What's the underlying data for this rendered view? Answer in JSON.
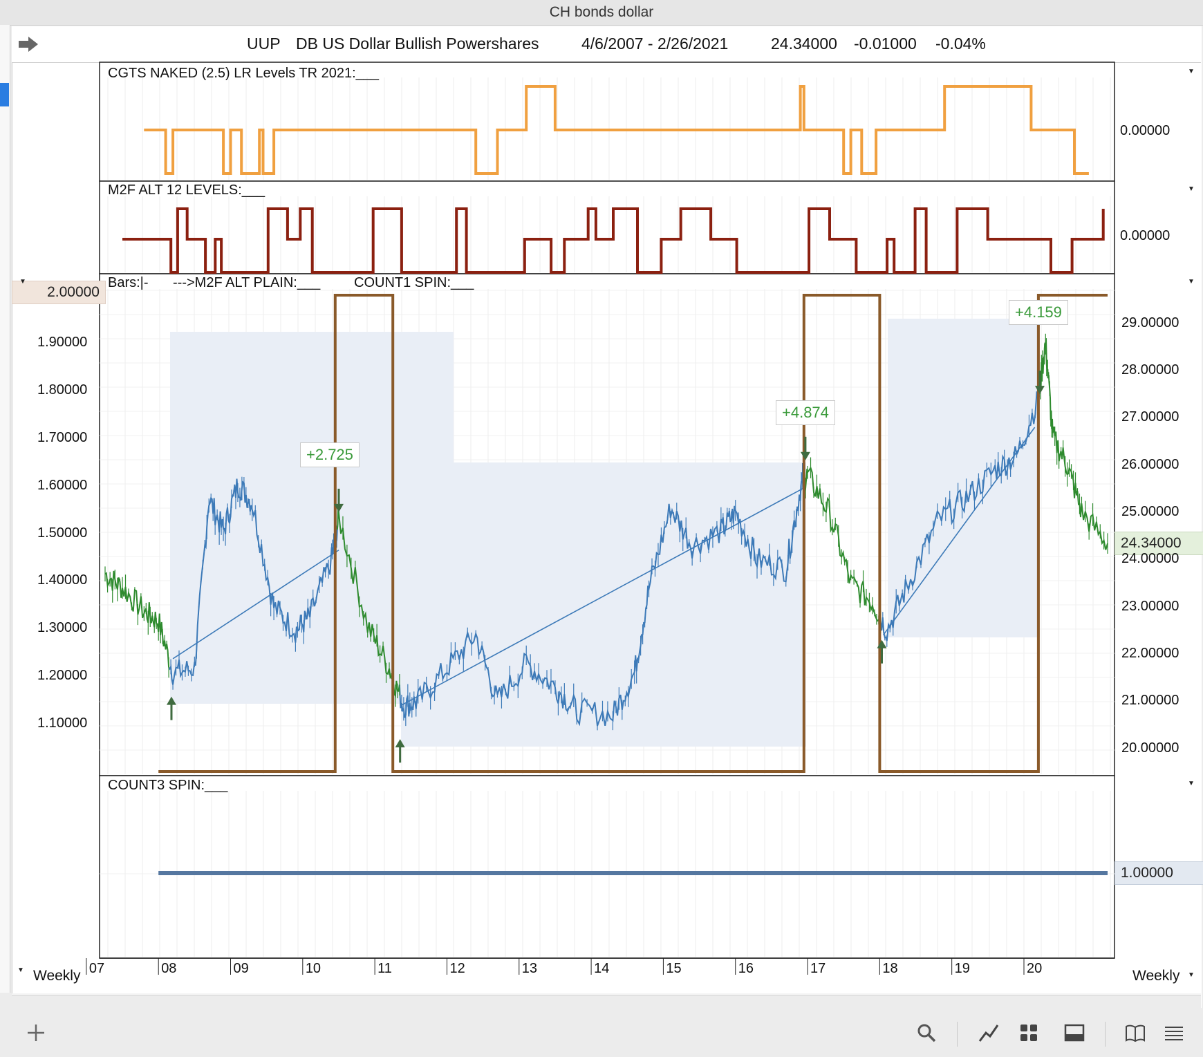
{
  "window": {
    "title": "CH bonds dollar"
  },
  "header": {
    "symbol": "UUP",
    "name": "DB US Dollar Bullish Powershares",
    "range": "4/6/2007 - 2/26/2021",
    "last": "24.34000",
    "change": "-0.01000",
    "change_pct": "-0.04%"
  },
  "panels": {
    "cgts": {
      "title": "CGTS NAKED (2.5) LR Levels TR 2021:___",
      "axis_value": "0.00000"
    },
    "m2f": {
      "title": "M2F ALT 12 LEVELS:___",
      "axis_value": "0.00000"
    },
    "main": {
      "bars_label": "Bars:|-",
      "m2f_plain_label": "--->M2F ALT PLAIN:___",
      "count1_label": "COUNT1 SPIN:___",
      "left_axis": [
        "1.90000",
        "1.80000",
        "1.70000",
        "1.60000",
        "1.50000",
        "1.40000",
        "1.30000",
        "1.20000",
        "1.10000"
      ],
      "left_highlight": "2.00000",
      "right_axis": [
        "29.00000",
        "28.00000",
        "27.00000",
        "26.00000",
        "25.00000",
        "24.00000",
        "23.00000",
        "22.00000",
        "21.00000",
        "20.00000"
      ],
      "last_price": "24.34000",
      "tags": [
        "+2.725",
        "+4.874",
        "+4.159"
      ]
    },
    "count3": {
      "title": "COUNT3 SPIN:___",
      "value": "1.00000"
    }
  },
  "x_axis": {
    "ticks": [
      "07",
      "08",
      "09",
      "10",
      "11",
      "12",
      "13",
      "14",
      "15",
      "16",
      "17",
      "18",
      "19",
      "20"
    ],
    "left_label": "Weekly",
    "right_label": "Weekly"
  },
  "colors": {
    "orange": "#f0a040",
    "darkred": "#8b2010",
    "brown": "#8a5a2a",
    "blue": "#3d7ab8",
    "green": "#2e8b2e",
    "shade": "#e9eef6",
    "count3": "#5577a0"
  },
  "icons": [
    "arrow-right-icon",
    "plus-icon",
    "search-icon",
    "line-chart-icon",
    "grid-icon",
    "panel-icon",
    "book-icon",
    "menu-icon"
  ],
  "chart_data": {
    "type": "line",
    "x_range": [
      "4/6/2007",
      "2/26/2021"
    ],
    "price_axis": {
      "ylim": [
        19.6,
        29.7
      ],
      "ticks": [
        20,
        21,
        22,
        23,
        24,
        25,
        26,
        27,
        28,
        29
      ]
    },
    "osc_axis": {
      "ylim": [
        1.0,
        2.0
      ],
      "ticks": [
        1.1,
        1.2,
        1.3,
        1.4,
        1.5,
        1.6,
        1.7,
        1.8,
        1.9,
        2.0
      ]
    },
    "price_series": [
      {
        "x": 2007.26,
        "y": 23.7
      },
      {
        "x": 2007.5,
        "y": 23.4
      },
      {
        "x": 2007.8,
        "y": 22.9
      },
      {
        "x": 2008.0,
        "y": 22.7
      },
      {
        "x": 2008.2,
        "y": 21.6
      },
      {
        "x": 2008.5,
        "y": 21.7
      },
      {
        "x": 2008.7,
        "y": 25.3
      },
      {
        "x": 2008.9,
        "y": 24.6
      },
      {
        "x": 2009.1,
        "y": 25.6
      },
      {
        "x": 2009.3,
        "y": 25.2
      },
      {
        "x": 2009.6,
        "y": 23.0
      },
      {
        "x": 2009.9,
        "y": 22.5
      },
      {
        "x": 2010.1,
        "y": 22.8
      },
      {
        "x": 2010.4,
        "y": 24.0
      },
      {
        "x": 2010.5,
        "y": 24.9
      },
      {
        "x": 2010.9,
        "y": 22.6
      },
      {
        "x": 2011.2,
        "y": 21.7
      },
      {
        "x": 2011.4,
        "y": 20.9
      },
      {
        "x": 2011.6,
        "y": 21.0
      },
      {
        "x": 2012.0,
        "y": 21.7
      },
      {
        "x": 2012.4,
        "y": 22.4
      },
      {
        "x": 2012.7,
        "y": 21.0
      },
      {
        "x": 2013.1,
        "y": 21.8
      },
      {
        "x": 2013.5,
        "y": 21.3
      },
      {
        "x": 2013.8,
        "y": 20.8
      },
      {
        "x": 2014.3,
        "y": 20.7
      },
      {
        "x": 2014.6,
        "y": 21.6
      },
      {
        "x": 2014.8,
        "y": 23.4
      },
      {
        "x": 2015.1,
        "y": 25.1
      },
      {
        "x": 2015.4,
        "y": 24.3
      },
      {
        "x": 2015.8,
        "y": 24.6
      },
      {
        "x": 2016.0,
        "y": 25.0
      },
      {
        "x": 2016.3,
        "y": 24.0
      },
      {
        "x": 2016.7,
        "y": 23.8
      },
      {
        "x": 2016.9,
        "y": 25.5
      },
      {
        "x": 2017.0,
        "y": 25.8
      },
      {
        "x": 2017.3,
        "y": 25.0
      },
      {
        "x": 2017.6,
        "y": 23.5
      },
      {
        "x": 2017.9,
        "y": 23.1
      },
      {
        "x": 2018.1,
        "y": 22.5
      },
      {
        "x": 2018.4,
        "y": 23.5
      },
      {
        "x": 2018.8,
        "y": 24.8
      },
      {
        "x": 2019.2,
        "y": 25.3
      },
      {
        "x": 2019.6,
        "y": 25.9
      },
      {
        "x": 2019.9,
        "y": 26.2
      },
      {
        "x": 2020.2,
        "y": 27.4
      },
      {
        "x": 2020.3,
        "y": 28.6
      },
      {
        "x": 2020.4,
        "y": 26.6
      },
      {
        "x": 2020.6,
        "y": 26.0
      },
      {
        "x": 2020.8,
        "y": 25.0
      },
      {
        "x": 2021.16,
        "y": 24.34
      }
    ],
    "cycle_gains": [
      {
        "x": 2010.5,
        "label": "+2.725"
      },
      {
        "x": 2016.95,
        "label": "+4.874"
      },
      {
        "x": 2020.22,
        "label": "+4.159"
      }
    ],
    "count1_spin": [
      {
        "x": 2008.0,
        "y": 1.0
      },
      {
        "x": 2010.45,
        "y": 1.0
      },
      {
        "x": 2010.45,
        "y": 2.0
      },
      {
        "x": 2011.25,
        "y": 2.0
      },
      {
        "x": 2011.25,
        "y": 1.0
      },
      {
        "x": 2016.95,
        "y": 1.0
      },
      {
        "x": 2016.95,
        "y": 2.0
      },
      {
        "x": 2018.0,
        "y": 2.0
      },
      {
        "x": 2018.0,
        "y": 1.0
      },
      {
        "x": 2020.2,
        "y": 1.0
      },
      {
        "x": 2020.2,
        "y": 2.0
      },
      {
        "x": 2021.16,
        "y": 2.0
      }
    ],
    "count3_spin": {
      "value": 1.0,
      "x_start": 2008.0,
      "x_end": 2021.16
    }
  }
}
